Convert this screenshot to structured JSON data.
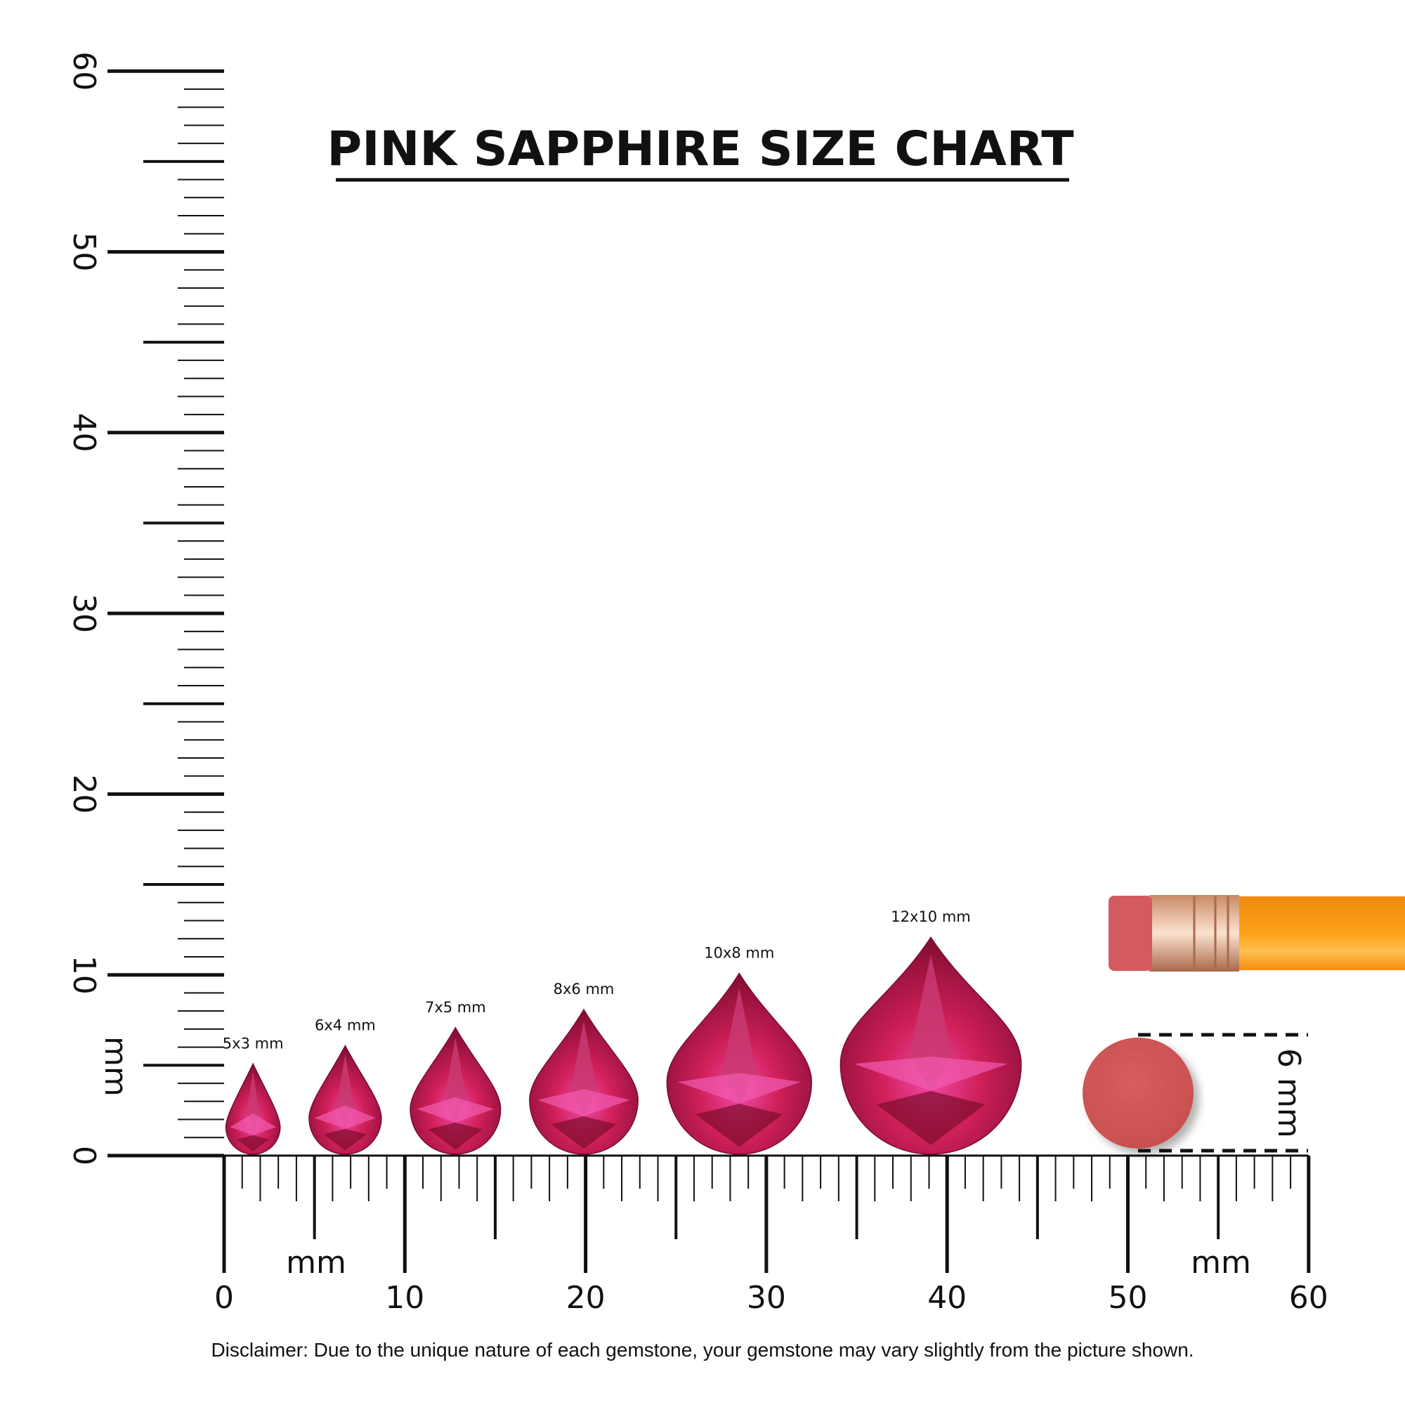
{
  "chart_data": {
    "type": "scatter",
    "title": "PINK SAPPHIRE SIZE CHART",
    "ruler_unit_label": "mm",
    "x_ticks": [
      "0",
      "10",
      "20",
      "30",
      "40",
      "50",
      "60"
    ],
    "y_ticks": [
      "0",
      "10",
      "20",
      "30",
      "40",
      "50",
      "60"
    ],
    "xlim": [
      0,
      60
    ],
    "ylim": [
      0,
      60
    ],
    "gems": [
      {
        "label": "5x3 mm",
        "length_mm": 5,
        "width_mm": 3,
        "center_x_mm": 1.6
      },
      {
        "label": "6x4 mm",
        "length_mm": 6,
        "width_mm": 4,
        "center_x_mm": 6.7
      },
      {
        "label": "7x5 mm",
        "length_mm": 7,
        "width_mm": 5,
        "center_x_mm": 12.8
      },
      {
        "label": "8x6 mm",
        "length_mm": 8,
        "width_mm": 6,
        "center_x_mm": 19.9
      },
      {
        "label": "10x8 mm",
        "length_mm": 10,
        "width_mm": 8,
        "center_x_mm": 28.5
      },
      {
        "label": "12x10 mm",
        "length_mm": 12,
        "width_mm": 10,
        "center_x_mm": 39.1
      }
    ],
    "reference": {
      "label": "6 mm",
      "object": "pencil eraser",
      "diameter_mm": 6
    },
    "colors": {
      "gem": "#d0205a",
      "gem_light": "#f04aa8",
      "gem_dark": "#8a0f35",
      "eraser": "#d35a5a",
      "pencil": "#fb9a10",
      "ferrule": "#d9a07a"
    }
  },
  "disclaimer": "Disclaimer: Due to the unique nature of each gemstone, your gemstone may vary slightly from the picture shown."
}
